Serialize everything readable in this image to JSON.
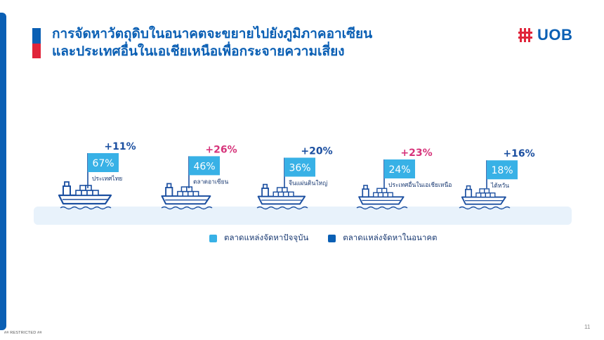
{
  "slide": {
    "title_line1": "การจัดหาวัตถุดิบในอนาคตจะขยายไปยังภูมิภาคอาเซียน",
    "title_line2": "และประเทศอื่นในเอเชียเหนือเพื่อกระจายความเสี่ยง",
    "logo_text": "UOB",
    "footer_text": "## RESTRICTED ##",
    "page_number": "11"
  },
  "chart_data": {
    "type": "bar",
    "title": "",
    "categories": [
      "ประเทศไทย",
      "ตลาดอาเซียน",
      "จีนแผ่นดินใหญ่",
      "ประเทศอื่นในเอเชียเหนือ",
      "ไต้หวัน"
    ],
    "series": [
      {
        "name": "ตลาดแหล่งจัดหาปัจจุบัน",
        "values": [
          "67%",
          "46%",
          "36%",
          "24%",
          "18%"
        ],
        "numeric": [
          67,
          46,
          36,
          24,
          18
        ],
        "color": "#38b1e6"
      },
      {
        "name": "ตลาดแหล่งจัดหาในอนาคต",
        "values": [
          "+11%",
          "+26%",
          "+20%",
          "+23%",
          "+16%"
        ],
        "numeric": [
          11,
          26,
          20,
          23,
          16
        ],
        "color": "#0a5fb4"
      }
    ],
    "change_colors": [
      "#1b4fa0",
      "#d6337a",
      "#1b4fa0",
      "#d6337a",
      "#1b4fa0"
    ],
    "legend_position": "bottom"
  },
  "colors": {
    "brand_blue": "#0a5fb4",
    "brand_red": "#e0243a",
    "current_market": "#38b1e6",
    "future_market": "#0a5fb4",
    "sea": "#e8f2fb",
    "ship": "#1b4fa0"
  },
  "icons": [
    "cargo-ship-icon",
    "uob-logo-icon"
  ]
}
